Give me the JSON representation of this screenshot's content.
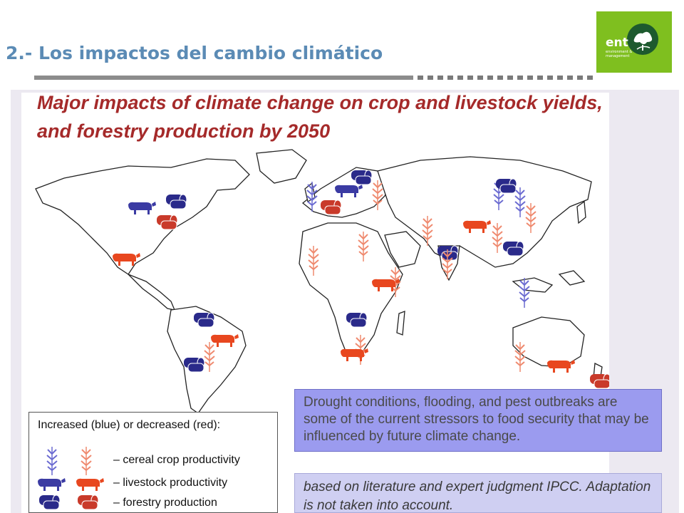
{
  "slide": {
    "title": "2.- Los impactos del cambio climático",
    "logo": {
      "text": "ent",
      "subtext": "environment & management",
      "color": "#7fbf1f"
    }
  },
  "figure": {
    "title": "Major impacts of climate change on crop and livestock yields, and forestry production by 2050",
    "legend": {
      "title": "Increased (blue) or decreased (red):",
      "items": [
        {
          "icon": "wheat-icon",
          "label": "– cereal crop productivity"
        },
        {
          "icon": "cow-icon",
          "label": "– livestock productivity"
        },
        {
          "icon": "log-icon",
          "label": "– forestry production"
        }
      ],
      "colors": {
        "increase": "#3b3ba3",
        "decrease": "#e8471f"
      }
    },
    "note": "Drought conditions, flooding, and pest outbreaks are some of the current stressors to food security that may be influenced by future climate change.",
    "source": "based on literature and expert judgment IPCC. Adaptation is not taken into account."
  }
}
